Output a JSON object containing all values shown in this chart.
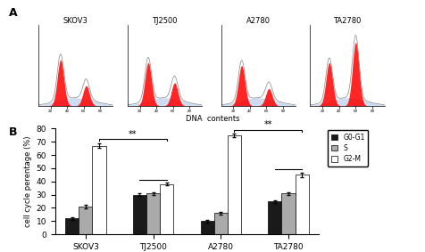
{
  "panel_A_label": "A",
  "panel_B_label": "B",
  "cell_lines": [
    "SKOV3",
    "TJ2500",
    "A2780",
    "TA2780"
  ],
  "phases": [
    "G0-G1",
    "S",
    "G2-M"
  ],
  "values": {
    "SKOV3": [
      12,
      21,
      67
    ],
    "TJ2500": [
      30,
      31,
      38
    ],
    "A2780": [
      10,
      16,
      75
    ],
    "TA2780": [
      25,
      31,
      45
    ]
  },
  "errors": {
    "SKOV3": [
      1.0,
      1.5,
      1.5
    ],
    "TJ2500": [
      1.0,
      1.0,
      1.0
    ],
    "A2780": [
      0.8,
      1.0,
      1.5
    ],
    "TA2780": [
      1.0,
      1.0,
      1.5
    ]
  },
  "bar_colors": [
    "#1a1a1a",
    "#aaaaaa",
    "#ffffff"
  ],
  "bar_edgecolor": "#000000",
  "ylabel": "cell cycle perentage (%)",
  "xlabel_groups": [
    "SKOV3",
    "TJ2500",
    "A2780",
    "TA2780"
  ],
  "ylim": [
    0,
    80
  ],
  "yticks": [
    0,
    10,
    20,
    30,
    40,
    50,
    60,
    70,
    80
  ],
  "legend_labels": [
    "G0-G1",
    "S",
    "G2-M"
  ],
  "background_color": "#ffffff",
  "flow_titles": [
    "SKOV3",
    "TJ2500",
    "A2780",
    "TA2780"
  ],
  "dna_label": "DNA  contents"
}
